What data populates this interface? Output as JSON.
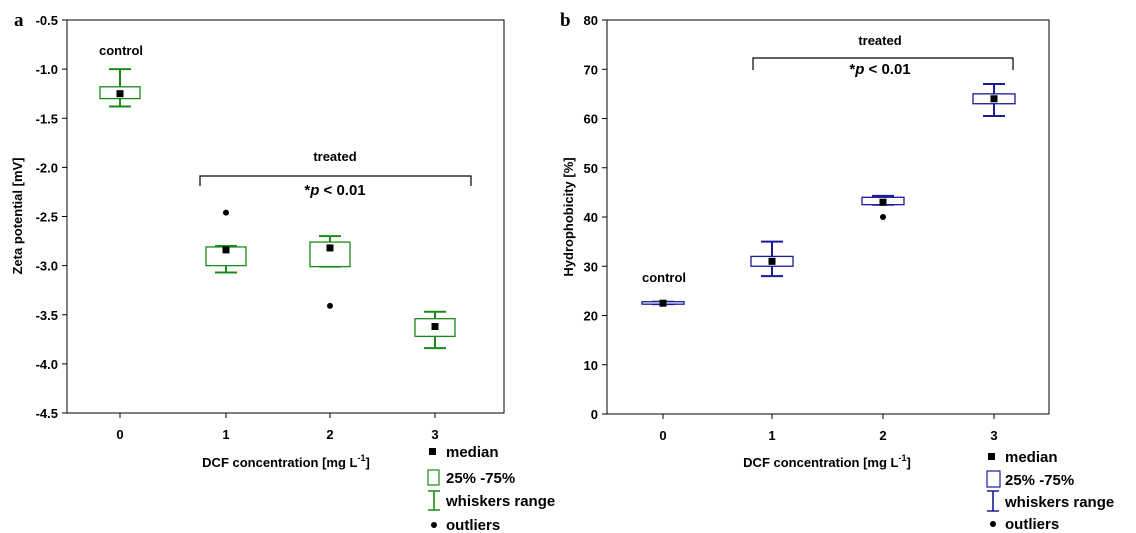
{
  "chart_data": [
    {
      "panel": "a",
      "type": "box",
      "xlabel": "DCF concentration [mg L",
      "xlabel_sup": "-1",
      "xlabel_end": "]",
      "ylabel": "Zeta potential [mV]",
      "ylim": [
        -4.5,
        -0.5
      ],
      "yticks": [
        -0.5,
        -1.0,
        -1.5,
        -2.0,
        -2.5,
        -3.0,
        -3.5,
        -4.0,
        -4.5
      ],
      "ytick_labels": [
        "-0.5",
        "-1.0",
        "-1.5",
        "-2.0",
        "-2.5",
        "-3.0",
        "-3.5",
        "-4.0",
        "-4.5"
      ],
      "categories": [
        "0",
        "1",
        "2",
        "3"
      ],
      "color": "#1a8a1a",
      "boxes": [
        {
          "x": 0,
          "median": -1.25,
          "q1": -1.3,
          "q3": -1.18,
          "whisker_low": -1.38,
          "whisker_high": -1.0,
          "outliers": []
        },
        {
          "x": 1,
          "median": -2.84,
          "q1": -3.0,
          "q3": -2.81,
          "whisker_low": -3.07,
          "whisker_high": -2.8,
          "outliers": [
            -2.46
          ]
        },
        {
          "x": 2,
          "median": -2.82,
          "q1": -3.01,
          "q3": -2.76,
          "whisker_low": -3.01,
          "whisker_high": -2.7,
          "outliers": [
            -3.41
          ]
        },
        {
          "x": 3,
          "median": -3.62,
          "q1": -3.72,
          "q3": -3.54,
          "whisker_low": -3.84,
          "whisker_high": -3.47,
          "outliers": []
        }
      ],
      "annotations": {
        "control": "control",
        "treated": "treated",
        "sig_star": "*",
        "sig_p": "p",
        "sig_rest": " < 0.01"
      },
      "legend": [
        "median",
        "25% -75%",
        "whiskers range",
        "outliers"
      ]
    },
    {
      "panel": "b",
      "type": "box",
      "xlabel": "DCF concentration [mg L",
      "xlabel_sup": "-1",
      "xlabel_end": "]",
      "ylabel": "Hydrophobicity [%]",
      "ylim": [
        0,
        80
      ],
      "yticks": [
        0,
        10,
        20,
        30,
        40,
        50,
        60,
        70,
        80
      ],
      "ytick_labels": [
        "0",
        "10",
        "20",
        "30",
        "40",
        "50",
        "60",
        "70",
        "80"
      ],
      "categories": [
        "0",
        "1",
        "2",
        "3"
      ],
      "color": "#1a1a9a",
      "boxes": [
        {
          "x": 0,
          "median": 22.5,
          "q1": 22.3,
          "q3": 22.8,
          "whisker_low": 22.3,
          "whisker_high": 22.8,
          "outliers": []
        },
        {
          "x": 1,
          "median": 31.0,
          "q1": 30.0,
          "q3": 32.0,
          "whisker_low": 28.0,
          "whisker_high": 35.0,
          "outliers": []
        },
        {
          "x": 2,
          "median": 43.0,
          "q1": 42.5,
          "q3": 44.0,
          "whisker_low": 42.5,
          "whisker_high": 44.3,
          "outliers": [
            40.0
          ]
        },
        {
          "x": 3,
          "median": 64.0,
          "q1": 63.0,
          "q3": 65.0,
          "whisker_low": 60.5,
          "whisker_high": 67.0,
          "outliers": []
        }
      ],
      "annotations": {
        "control": "control",
        "treated": "treated",
        "sig_star": "*",
        "sig_p": "p",
        "sig_rest": " < 0.01"
      },
      "legend": [
        "median",
        "25% -75%",
        "whiskers range",
        "outliers"
      ]
    }
  ]
}
